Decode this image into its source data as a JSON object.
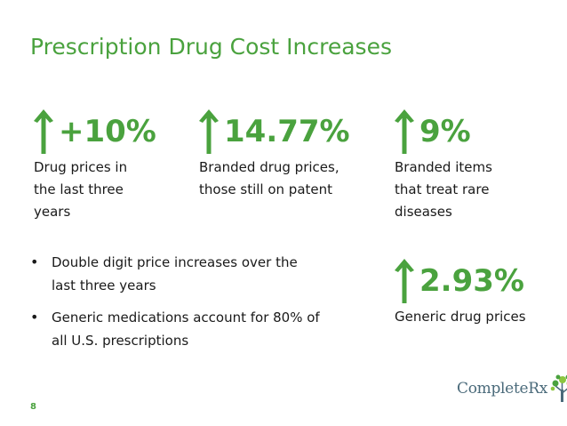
{
  "title": "Prescription Drug Cost Increases",
  "stats": [
    {
      "value": "+10%",
      "description": "Drug prices in\nthe last three\nyears"
    },
    {
      "value": "14.77%",
      "description": "Branded drug prices,\nthose still on patent"
    },
    {
      "value": "9%",
      "description": "Branded items\nthat treat rare\ndiseases"
    },
    {
      "value": "2.93%",
      "description": "Generic drug prices"
    }
  ],
  "bullets": [
    "Double digit price increases over the last three years",
    "Generic medications account for 80% of all U.S. prescriptions"
  ],
  "page_number": "8",
  "logo": {
    "text": "CompleteRx",
    "icon": "tree-leaf-icon"
  },
  "colors": {
    "accent": "#4aa23e",
    "text": "#1a1a1a",
    "logo": "#4a6a7a"
  }
}
